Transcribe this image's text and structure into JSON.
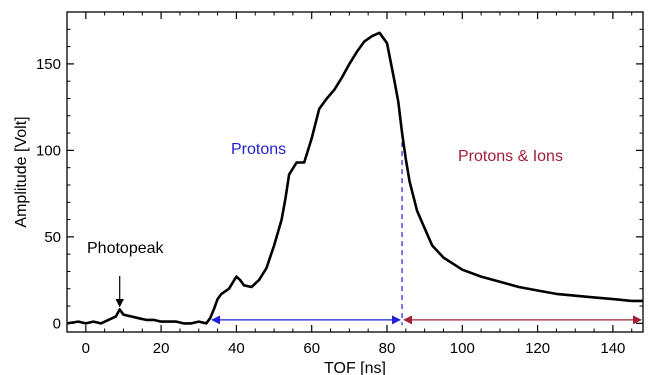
{
  "chart_data": {
    "type": "line",
    "title": "",
    "xlabel": "TOF [ns]",
    "ylabel": "Amplitude [Volt]",
    "xlim": [
      -5,
      148
    ],
    "ylim": [
      -5,
      180
    ],
    "xticks": [
      0,
      20,
      40,
      60,
      80,
      100,
      120,
      140
    ],
    "yticks": [
      0,
      50,
      100,
      150
    ],
    "grid": false,
    "series": [
      {
        "color": "#000000",
        "x": [
          -5,
          -2,
          0,
          2,
          4,
          6,
          8,
          9,
          10,
          12,
          14,
          16,
          18,
          20,
          22,
          24,
          26,
          28,
          30,
          32,
          33,
          34,
          35,
          36,
          38,
          40,
          41,
          42,
          44,
          46,
          48,
          50,
          52,
          53,
          54,
          56,
          58,
          60,
          62,
          64,
          66,
          68,
          70,
          72,
          74,
          76,
          78,
          80,
          82,
          83,
          84,
          85,
          86,
          88,
          90,
          92,
          95,
          100,
          105,
          110,
          115,
          120,
          125,
          130,
          135,
          140,
          145,
          148
        ],
        "y": [
          0,
          1,
          0,
          1,
          0,
          2,
          4,
          8,
          5,
          4,
          3,
          2,
          2,
          1,
          1,
          1,
          0,
          0,
          1,
          0,
          3,
          8,
          14,
          17,
          20,
          27,
          25,
          22,
          21,
          25,
          32,
          45,
          60,
          72,
          86,
          93,
          93,
          107,
          124,
          130,
          135,
          142,
          150,
          157,
          163,
          166,
          168,
          162,
          140,
          128,
          110,
          95,
          82,
          65,
          55,
          45,
          38,
          31,
          27,
          24,
          21,
          19,
          17,
          16,
          15,
          14,
          13,
          13
        ]
      }
    ],
    "annotations": [
      {
        "id": "photopeak",
        "text": "Photopeak",
        "color": "#000000",
        "arrow_to": [
          9,
          8
        ]
      },
      {
        "id": "protons",
        "text": "Protons",
        "color": "#1f1fd6",
        "range": [
          33,
          84
        ]
      },
      {
        "id": "ions",
        "text": "Protons & Ions",
        "color": "#a0203a",
        "range": [
          84,
          148
        ]
      }
    ],
    "divider_x": 84
  }
}
